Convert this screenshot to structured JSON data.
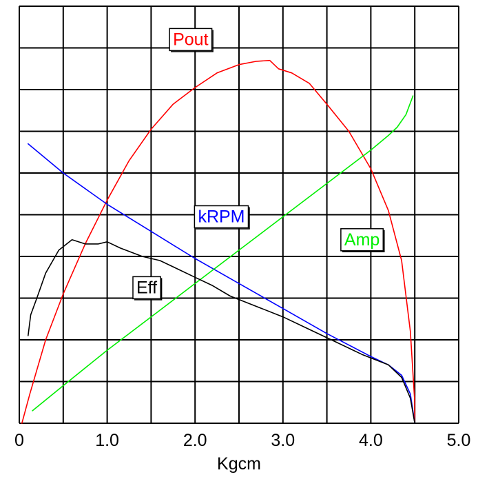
{
  "chart_data": {
    "type": "line",
    "title": "",
    "xlabel": "Kgcm",
    "ylabel": "",
    "xlim": [
      0,
      5.0
    ],
    "ylim": [
      0,
      10
    ],
    "x_ticks": [
      {
        "value": 0,
        "label": "0"
      },
      {
        "value": 1.0,
        "label": "1.0"
      },
      {
        "value": 2.0,
        "label": "2.0"
      },
      {
        "value": 3.0,
        "label": "3.0"
      },
      {
        "value": 4.0,
        "label": "4.0"
      },
      {
        "value": 5.0,
        "label": "5.0"
      }
    ],
    "x_grid_step": 0.5,
    "y_grid_step": 1,
    "grid": true,
    "legend": "none",
    "series": [
      {
        "name": "Pout",
        "color": "#ff0000",
        "label_anchor": {
          "x": 1.95,
          "y": 9.2
        },
        "points": [
          [
            0.03,
            0.0
          ],
          [
            0.12,
            0.7
          ],
          [
            0.3,
            2.0
          ],
          [
            0.5,
            3.1
          ],
          [
            0.75,
            4.3
          ],
          [
            1.0,
            5.35
          ],
          [
            1.25,
            6.3
          ],
          [
            1.5,
            7.05
          ],
          [
            1.75,
            7.65
          ],
          [
            2.0,
            8.05
          ],
          [
            2.25,
            8.4
          ],
          [
            2.5,
            8.6
          ],
          [
            2.7,
            8.68
          ],
          [
            2.85,
            8.7
          ],
          [
            2.95,
            8.5
          ],
          [
            3.1,
            8.4
          ],
          [
            3.3,
            8.15
          ],
          [
            3.5,
            7.65
          ],
          [
            3.75,
            7.0
          ],
          [
            4.0,
            6.1
          ],
          [
            4.2,
            5.1
          ],
          [
            4.35,
            3.9
          ],
          [
            4.45,
            2.2
          ],
          [
            4.5,
            0.5
          ],
          [
            4.5,
            0.0
          ]
        ]
      },
      {
        "name": "kRPM",
        "color": "#0000ff",
        "label_anchor": {
          "x": 2.3,
          "y": 4.95
        },
        "points": [
          [
            0.1,
            6.7
          ],
          [
            0.5,
            6.0
          ],
          [
            1.0,
            5.25
          ],
          [
            1.5,
            4.6
          ],
          [
            2.0,
            3.95
          ],
          [
            2.5,
            3.35
          ],
          [
            3.0,
            2.75
          ],
          [
            3.5,
            2.15
          ],
          [
            4.0,
            1.6
          ],
          [
            4.2,
            1.4
          ],
          [
            4.35,
            1.15
          ],
          [
            4.45,
            0.7
          ],
          [
            4.5,
            0.0
          ]
        ]
      },
      {
        "name": "Amp",
        "color": "#00ee00",
        "label_anchor": {
          "x": 3.9,
          "y": 4.4
        },
        "points": [
          [
            0.15,
            0.3
          ],
          [
            0.5,
            0.9
          ],
          [
            1.0,
            1.75
          ],
          [
            1.5,
            2.55
          ],
          [
            2.0,
            3.35
          ],
          [
            2.5,
            4.15
          ],
          [
            3.0,
            4.95
          ],
          [
            3.5,
            5.75
          ],
          [
            4.0,
            6.55
          ],
          [
            4.2,
            6.9
          ],
          [
            4.3,
            7.1
          ],
          [
            4.4,
            7.4
          ],
          [
            4.48,
            7.85
          ]
        ]
      },
      {
        "name": "Eff",
        "color": "#000000",
        "label_anchor": {
          "x": 1.45,
          "y": 3.25
        },
        "points": [
          [
            0.1,
            2.1
          ],
          [
            0.13,
            2.6
          ],
          [
            0.2,
            3.0
          ],
          [
            0.3,
            3.6
          ],
          [
            0.45,
            4.15
          ],
          [
            0.6,
            4.4
          ],
          [
            0.75,
            4.3
          ],
          [
            0.9,
            4.3
          ],
          [
            1.0,
            4.35
          ],
          [
            1.15,
            4.2
          ],
          [
            1.4,
            4.0
          ],
          [
            1.6,
            3.9
          ],
          [
            1.8,
            3.7
          ],
          [
            2.0,
            3.5
          ],
          [
            2.2,
            3.3
          ],
          [
            2.4,
            3.05
          ],
          [
            2.7,
            2.8
          ],
          [
            3.0,
            2.55
          ],
          [
            3.3,
            2.25
          ],
          [
            3.6,
            1.95
          ],
          [
            3.9,
            1.65
          ],
          [
            4.2,
            1.4
          ],
          [
            4.35,
            1.1
          ],
          [
            4.45,
            0.6
          ],
          [
            4.5,
            0.0
          ]
        ]
      }
    ]
  }
}
